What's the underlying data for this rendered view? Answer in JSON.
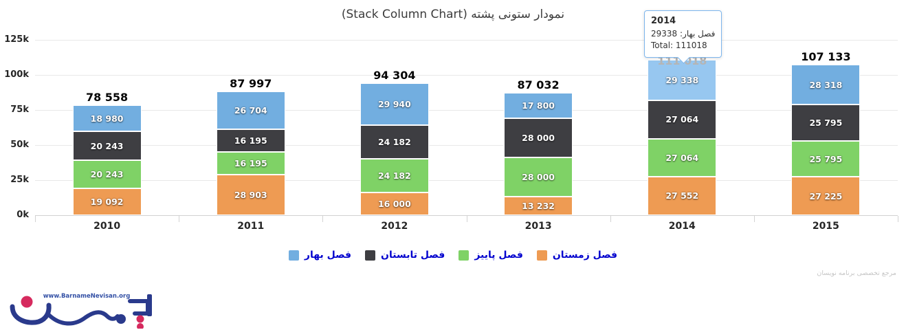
{
  "title": "نمودار ستونی پشته (Stack Column Chart)",
  "watermark": "مرجع تخصصی برنامه نویسان",
  "logo": {
    "url": "www.BarnameNevisan.org"
  },
  "tooltip": {
    "title": "2014",
    "series_line": "فصل بهار: 29338",
    "total_line": "Total: 111018"
  },
  "y_axis_labels": [
    "0k",
    "25k",
    "50k",
    "75k",
    "100k",
    "125k"
  ],
  "colors": {
    "spring_blue": "#72aee0",
    "spring_blue_hover": "#97c7f0",
    "summer_dark": "#3e3e42",
    "autumn_green": "#7fd266",
    "winter_orange": "#ee9b53",
    "legend_text": "#0101ce",
    "tooltip_border": "#7cb5ec"
  },
  "chart_data": {
    "type": "bar",
    "stacked": true,
    "title": "نمودار ستونی پشته (Stack Column Chart)",
    "categories": [
      "2010",
      "2011",
      "2012",
      "2013",
      "2014",
      "2015"
    ],
    "series": [
      {
        "name": "فصل بهار",
        "color": "#72aee0",
        "hover_color": "#97c7f0",
        "values": [
          18980,
          26704,
          29940,
          17800,
          29338,
          28318
        ]
      },
      {
        "name": "فصل تابستان",
        "color": "#3e3e42",
        "values": [
          20243,
          16195,
          24182,
          28000,
          27064,
          25795
        ]
      },
      {
        "name": "فصل پاییز",
        "color": "#7fd266",
        "values": [
          20243,
          16195,
          24182,
          28000,
          27064,
          25795
        ]
      },
      {
        "name": "فصل زمستان",
        "color": "#ee9b53",
        "values": [
          19092,
          28903,
          16000,
          13232,
          27552,
          27225
        ]
      }
    ],
    "totals": [
      78558,
      87997,
      94304,
      87032,
      111018,
      107133
    ],
    "ylim": [
      0,
      125000
    ],
    "y_tick_step": 25000,
    "grid": true,
    "legend_position": "bottom",
    "hover": {
      "category": "2014",
      "category_index": 4,
      "series_index": 0
    }
  }
}
